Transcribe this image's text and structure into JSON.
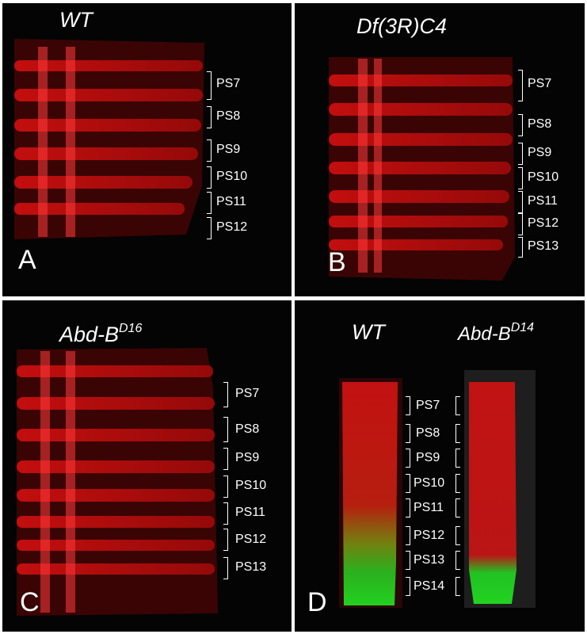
{
  "panels": {
    "A": {
      "letter": "A",
      "title": "WT",
      "segments": [
        "PS7",
        "PS8",
        "PS9",
        "PS10",
        "PS11",
        "PS12"
      ]
    },
    "B": {
      "letter": "B",
      "title": "Df(3R)C4",
      "segments": [
        "PS7",
        "PS8",
        "PS9",
        "PS10",
        "PS11",
        "PS12",
        "PS13"
      ]
    },
    "C": {
      "letter": "C",
      "title_base": "Abd-B",
      "title_sup": "D16",
      "segments": [
        "PS7",
        "PS8",
        "PS9",
        "PS10",
        "PS11",
        "PS12",
        "PS13"
      ]
    },
    "D": {
      "letter": "D",
      "title_left": "WT",
      "title_right_base": "Abd-B",
      "title_right_sup": "D14",
      "segments": [
        "PS7",
        "PS8",
        "PS9",
        "PS10",
        "PS11",
        "PS12",
        "PS13",
        "PS14"
      ]
    }
  },
  "colors": {
    "stain_red": "#e01010",
    "stain_green": "#22dd22",
    "background": "#040404",
    "text": "#ffffff"
  }
}
